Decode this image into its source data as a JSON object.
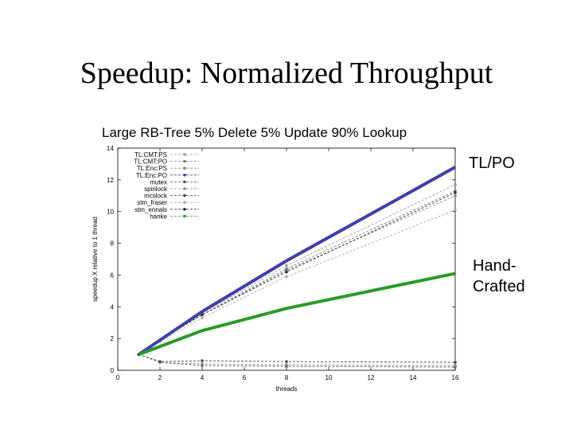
{
  "slide": {
    "title": "Speedup: Normalized Throughput",
    "callouts": {
      "tlpo": "TL/PO",
      "hand_line1": "Hand-",
      "hand_line2": "Crafted"
    }
  },
  "chart_data": {
    "type": "line",
    "title": "Large RB-Tree 5% Delete 5% Update 90% Lookup",
    "xlabel": "threads",
    "ylabel": "speedup X relative to 1 thread",
    "xlim": [
      0,
      16
    ],
    "ylim": [
      0,
      14
    ],
    "xticks": [
      0,
      2,
      4,
      6,
      8,
      10,
      12,
      14,
      16
    ],
    "yticks": [
      0,
      2,
      4,
      6,
      8,
      10,
      12,
      14
    ],
    "x": [
      1,
      2,
      4,
      8,
      16
    ],
    "legend_position": "top-left",
    "series": [
      {
        "name": "TL:CMT:PS",
        "values": [
          1,
          1.9,
          3.6,
          6.6,
          11.7
        ],
        "color": "#9a9a9a"
      },
      {
        "name": "TL:CMT:PO",
        "values": [
          1,
          1.9,
          3.5,
          6.4,
          11.3
        ],
        "color": "#7a7a7a"
      },
      {
        "name": "TL:Enc:PS",
        "values": [
          1,
          1.9,
          3.5,
          6.3,
          11.0
        ],
        "color": "#8a8a8a"
      },
      {
        "name": "TL:Enc:PO",
        "values": [
          1,
          1.9,
          3.7,
          6.9,
          12.8
        ],
        "color": "#3f3faa",
        "highlight": true
      },
      {
        "name": "mutex",
        "values": [
          1,
          0.5,
          0.3,
          0.25,
          0.2
        ],
        "color": "#555555"
      },
      {
        "name": "spinlock",
        "values": [
          1,
          0.5,
          0.4,
          0.35,
          0.3
        ],
        "color": "#888888"
      },
      {
        "name": "mcslock",
        "values": [
          1,
          0.55,
          0.6,
          0.55,
          0.5
        ],
        "color": "#444444"
      },
      {
        "name": "stm_fraser",
        "values": [
          1,
          1.8,
          3.3,
          5.9,
          10.1
        ],
        "color": "#aaaaaa"
      },
      {
        "name": "stm_ennals",
        "values": [
          1,
          1.9,
          3.5,
          6.2,
          11.2
        ],
        "color": "#333333"
      },
      {
        "name": "hanke",
        "values": [
          1,
          1.5,
          2.5,
          3.9,
          6.1
        ],
        "color": "#2a9a2a",
        "highlight": true
      }
    ]
  }
}
